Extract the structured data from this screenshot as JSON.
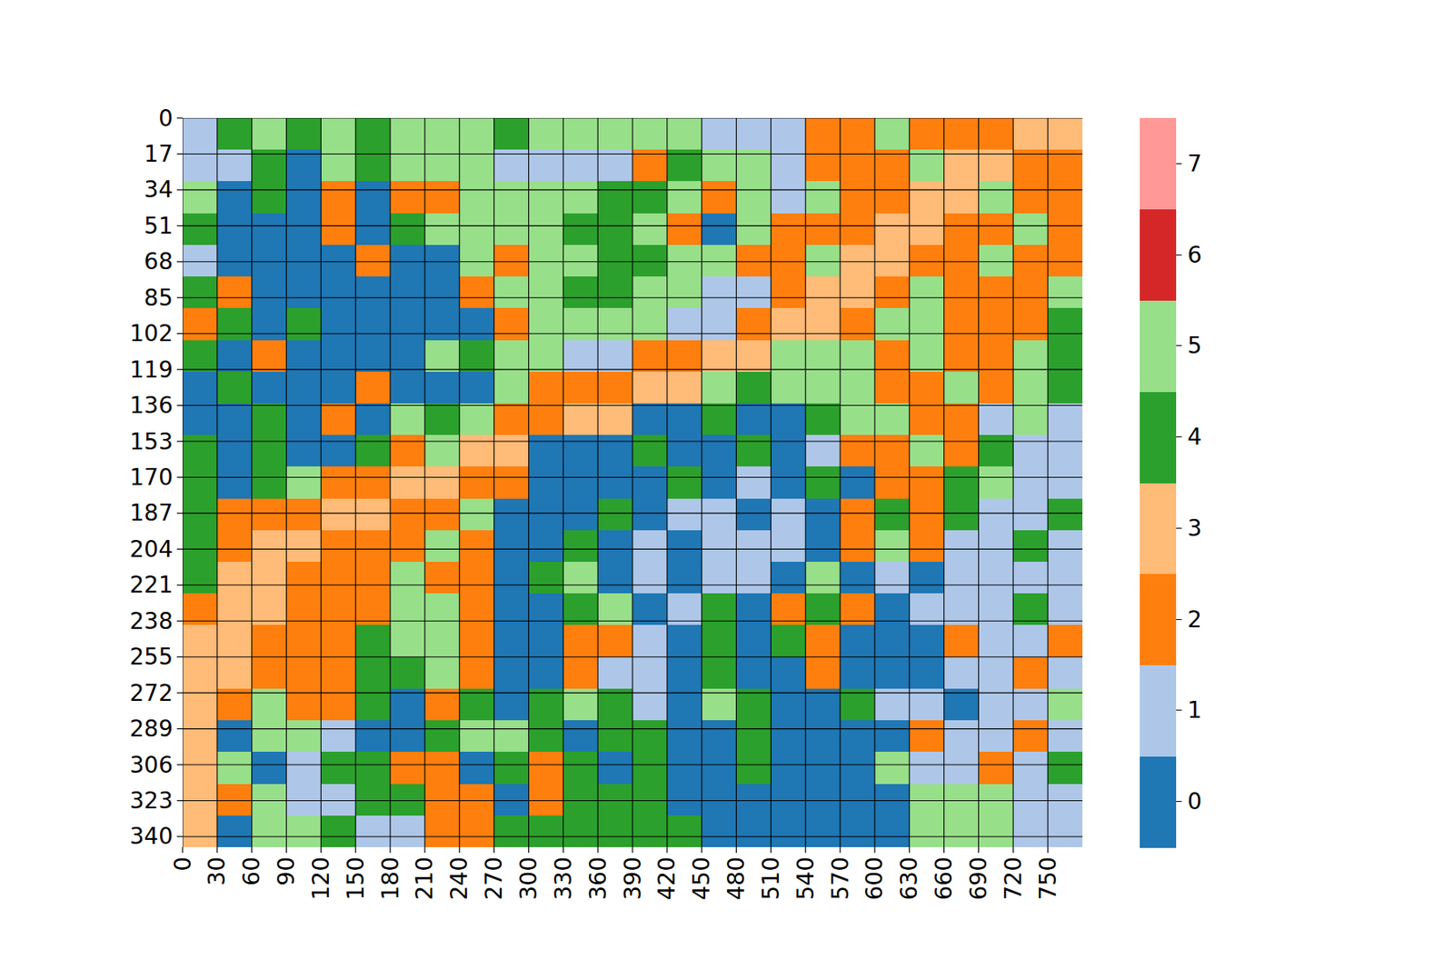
{
  "chart_data": {
    "type": "heatmap",
    "xlim": [
      0,
      780
    ],
    "ylim": [
      345,
      0
    ],
    "xticks": [
      0,
      30,
      60,
      90,
      120,
      150,
      180,
      210,
      240,
      270,
      300,
      330,
      360,
      390,
      420,
      450,
      480,
      510,
      540,
      570,
      600,
      630,
      660,
      690,
      720,
      750
    ],
    "yticks": [
      0,
      17,
      34,
      51,
      68,
      85,
      102,
      119,
      136,
      153,
      170,
      187,
      204,
      221,
      238,
      255,
      272,
      289,
      306,
      323,
      340
    ],
    "grid": true,
    "x": [
      0,
      30,
      60,
      90,
      120,
      150,
      180,
      210,
      240,
      270,
      300,
      330,
      360,
      390,
      420,
      450,
      480,
      510,
      540,
      570,
      600,
      630,
      660,
      690,
      720,
      750
    ],
    "y": [
      0,
      15,
      30,
      45,
      60,
      75,
      90,
      105,
      120,
      135,
      150,
      165,
      180,
      195,
      210,
      225,
      240,
      255,
      270,
      285,
      300,
      315,
      330
    ],
    "cells": [
      [
        1,
        4,
        5,
        4,
        5,
        4,
        5,
        5,
        5,
        4,
        5,
        5,
        5,
        5,
        5,
        1,
        1,
        1,
        2,
        2,
        5,
        2,
        2,
        2,
        3,
        3
      ],
      [
        1,
        1,
        4,
        0,
        5,
        4,
        5,
        5,
        5,
        1,
        1,
        1,
        1,
        2,
        4,
        5,
        5,
        1,
        2,
        2,
        2,
        5,
        3,
        3,
        2,
        2
      ],
      [
        5,
        0,
        4,
        0,
        2,
        0,
        2,
        2,
        5,
        5,
        5,
        5,
        4,
        4,
        5,
        2,
        5,
        1,
        5,
        2,
        2,
        3,
        3,
        5,
        2,
        2
      ],
      [
        4,
        0,
        0,
        0,
        2,
        0,
        4,
        5,
        5,
        5,
        5,
        4,
        4,
        5,
        2,
        0,
        5,
        2,
        2,
        2,
        3,
        3,
        2,
        2,
        5,
        2
      ],
      [
        1,
        0,
        0,
        0,
        0,
        2,
        0,
        0,
        5,
        2,
        5,
        5,
        4,
        4,
        5,
        5,
        2,
        2,
        5,
        3,
        3,
        2,
        2,
        5,
        2,
        2
      ],
      [
        4,
        2,
        0,
        0,
        0,
        0,
        0,
        0,
        2,
        5,
        5,
        4,
        4,
        5,
        5,
        1,
        1,
        2,
        3,
        3,
        2,
        5,
        2,
        2,
        2,
        5
      ],
      [
        2,
        4,
        0,
        4,
        0,
        0,
        0,
        0,
        0,
        2,
        5,
        5,
        5,
        5,
        1,
        1,
        2,
        3,
        3,
        2,
        5,
        5,
        2,
        2,
        2,
        4
      ],
      [
        4,
        0,
        2,
        0,
        0,
        0,
        0,
        5,
        4,
        5,
        5,
        1,
        1,
        2,
        2,
        3,
        3,
        5,
        5,
        5,
        2,
        5,
        2,
        2,
        5,
        4
      ],
      [
        0,
        4,
        0,
        0,
        0,
        2,
        0,
        0,
        0,
        5,
        2,
        2,
        2,
        3,
        3,
        5,
        4,
        5,
        5,
        5,
        2,
        2,
        5,
        2,
        5,
        4
      ],
      [
        0,
        0,
        4,
        0,
        2,
        0,
        5,
        4,
        5,
        2,
        2,
        3,
        3,
        0,
        0,
        4,
        0,
        0,
        4,
        5,
        5,
        2,
        2,
        1,
        5,
        1
      ],
      [
        4,
        0,
        4,
        0,
        0,
        4,
        2,
        5,
        3,
        3,
        0,
        0,
        0,
        4,
        0,
        0,
        4,
        0,
        1,
        2,
        2,
        5,
        2,
        4,
        1,
        1
      ],
      [
        4,
        0,
        4,
        5,
        2,
        2,
        3,
        3,
        2,
        2,
        0,
        0,
        0,
        0,
        4,
        0,
        1,
        0,
        4,
        0,
        2,
        2,
        4,
        5,
        1,
        1
      ],
      [
        4,
        2,
        2,
        2,
        3,
        3,
        2,
        2,
        5,
        0,
        0,
        0,
        4,
        0,
        1,
        1,
        0,
        1,
        0,
        2,
        4,
        2,
        4,
        1,
        1,
        4
      ],
      [
        4,
        2,
        3,
        3,
        2,
        2,
        2,
        5,
        2,
        0,
        0,
        4,
        0,
        1,
        0,
        1,
        1,
        1,
        0,
        2,
        5,
        2,
        1,
        1,
        4,
        1
      ],
      [
        4,
        3,
        3,
        2,
        2,
        2,
        5,
        2,
        2,
        0,
        4,
        5,
        0,
        1,
        0,
        1,
        1,
        0,
        5,
        0,
        1,
        0,
        1,
        1,
        1,
        1
      ],
      [
        2,
        3,
        3,
        2,
        2,
        2,
        5,
        5,
        2,
        0,
        0,
        4,
        5,
        0,
        1,
        4,
        0,
        2,
        4,
        2,
        0,
        1,
        1,
        1,
        4,
        1
      ],
      [
        3,
        3,
        2,
        2,
        2,
        4,
        5,
        5,
        2,
        0,
        0,
        2,
        2,
        1,
        0,
        4,
        0,
        4,
        2,
        0,
        0,
        0,
        2,
        1,
        1,
        2
      ],
      [
        3,
        3,
        2,
        2,
        2,
        4,
        4,
        5,
        2,
        0,
        0,
        2,
        1,
        1,
        0,
        4,
        0,
        0,
        2,
        0,
        0,
        0,
        1,
        1,
        2,
        1
      ],
      [
        3,
        2,
        5,
        2,
        2,
        4,
        0,
        2,
        4,
        0,
        4,
        5,
        4,
        1,
        0,
        5,
        4,
        0,
        0,
        4,
        1,
        1,
        0,
        1,
        1,
        5
      ],
      [
        3,
        0,
        5,
        5,
        1,
        0,
        0,
        4,
        5,
        5,
        4,
        0,
        4,
        4,
        0,
        0,
        4,
        0,
        0,
        0,
        0,
        2,
        1,
        1,
        2,
        1
      ],
      [
        3,
        5,
        0,
        1,
        4,
        4,
        2,
        2,
        0,
        4,
        2,
        4,
        0,
        4,
        0,
        0,
        4,
        0,
        0,
        0,
        5,
        1,
        1,
        2,
        1,
        4
      ],
      [
        3,
        2,
        5,
        1,
        1,
        4,
        4,
        2,
        2,
        0,
        2,
        4,
        4,
        4,
        0,
        0,
        0,
        0,
        0,
        0,
        0,
        5,
        5,
        5,
        1,
        1
      ],
      [
        3,
        0,
        5,
        5,
        4,
        1,
        1,
        2,
        2,
        4,
        4,
        4,
        4,
        4,
        4,
        0,
        0,
        0,
        0,
        0,
        0,
        5,
        5,
        5,
        1,
        1
      ]
    ],
    "colorbar": {
      "range": [
        -0.5,
        7.5
      ],
      "ticks": [
        0,
        1,
        2,
        3,
        4,
        5,
        6,
        7
      ],
      "colors": [
        "#1f77b4",
        "#aec7e8",
        "#ff7f0e",
        "#ffbb78",
        "#2ca02c",
        "#98df8a",
        "#d62728",
        "#ff9896"
      ]
    }
  }
}
